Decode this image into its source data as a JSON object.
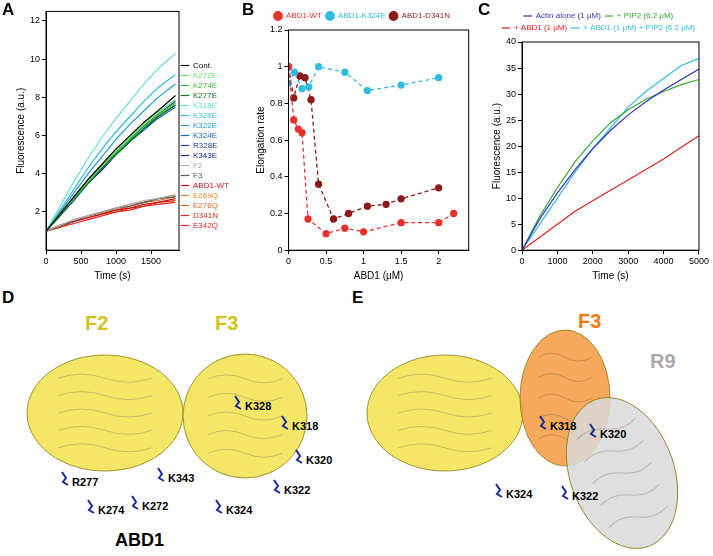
{
  "chart_data": [
    {
      "panel": "A",
      "type": "line",
      "xlabel": "Time (s)",
      "ylabel": "Fluorescence (a.u.)",
      "xlim": [
        0,
        1900
      ],
      "xticks": [
        0,
        500,
        1000,
        1500
      ],
      "ylim": [
        0,
        12.5
      ],
      "yticks": [
        2,
        4,
        6,
        8,
        10,
        12
      ],
      "grid": false,
      "legend": "right",
      "x": [
        0,
        200,
        400,
        600,
        800,
        1000,
        1200,
        1400,
        1600,
        1850
      ],
      "series": [
        {
          "name": "Cont.",
          "color": "#000000",
          "values": [
            1,
            1.9,
            2.8,
            3.7,
            4.5,
            5.3,
            6.0,
            6.7,
            7.3,
            8.1
          ]
        },
        {
          "name": "K272E",
          "color": "#66dd66",
          "values": [
            1,
            1.9,
            2.8,
            3.6,
            4.4,
            5.2,
            5.9,
            6.6,
            7.2,
            7.9
          ]
        },
        {
          "name": "K274E",
          "color": "#33bb33",
          "values": [
            1,
            1.9,
            2.7,
            3.6,
            4.4,
            5.1,
            5.8,
            6.5,
            7.1,
            7.7
          ]
        },
        {
          "name": "K277E",
          "color": "#117711",
          "values": [
            1,
            1.8,
            2.7,
            3.5,
            4.3,
            5.0,
            5.7,
            6.4,
            7.0,
            7.6
          ]
        },
        {
          "name": "K318E",
          "color": "#66dddd",
          "values": [
            1,
            2.3,
            3.6,
            4.8,
            5.9,
            6.9,
            7.8,
            8.7,
            9.5,
            10.3
          ]
        },
        {
          "name": "K320E",
          "color": "#33bbdd",
          "values": [
            1,
            2.1,
            3.2,
            4.3,
            5.3,
            6.2,
            7.0,
            7.8,
            8.5,
            9.2
          ]
        },
        {
          "name": "K322E",
          "color": "#2299cc",
          "values": [
            1,
            2.0,
            3.0,
            4.0,
            4.9,
            5.8,
            6.6,
            7.3,
            8.0,
            8.7
          ]
        },
        {
          "name": "K324E",
          "color": "#1166bb",
          "values": [
            1,
            1.8,
            2.6,
            3.5,
            4.3,
            5.0,
            5.7,
            6.3,
            6.9,
            7.5
          ]
        },
        {
          "name": "R328E",
          "color": "#2244aa",
          "values": [
            1,
            1.9,
            2.8,
            3.6,
            4.4,
            5.1,
            5.8,
            6.5,
            7.1,
            7.8
          ]
        },
        {
          "name": "K343E",
          "color": "#112288",
          "values": [
            1,
            1.8,
            2.7,
            3.5,
            4.2,
            5.0,
            5.7,
            6.3,
            7.0,
            7.6
          ]
        },
        {
          "name": "F2",
          "color": "#aaaaaa",
          "values": [
            1,
            1.3,
            1.6,
            1.8,
            2.0,
            2.2,
            2.4,
            2.6,
            2.7,
            2.9
          ]
        },
        {
          "name": "F3",
          "color": "#555555",
          "values": [
            1,
            1.3,
            1.5,
            1.8,
            2.0,
            2.2,
            2.3,
            2.5,
            2.7,
            2.8
          ]
        },
        {
          "name": "ABD1-WT",
          "color": "#cc1111",
          "values": [
            1,
            1.3,
            1.5,
            1.7,
            1.9,
            2.1,
            2.2,
            2.4,
            2.5,
            2.7
          ]
        },
        {
          "name": "E269Q",
          "color": "#ee8833",
          "values": [
            1,
            1.3,
            1.6,
            1.8,
            2.0,
            2.2,
            2.4,
            2.5,
            2.7,
            2.9
          ]
        },
        {
          "name": "E276Q",
          "color": "#dd6622",
          "values": [
            1,
            1.3,
            1.5,
            1.8,
            2.0,
            2.1,
            2.3,
            2.5,
            2.6,
            2.8
          ]
        },
        {
          "name": "D341N",
          "color": "#bb3311",
          "values": [
            1,
            1.2,
            1.5,
            1.7,
            1.9,
            2.0,
            2.2,
            2.3,
            2.5,
            2.6
          ]
        },
        {
          "name": "E342Q",
          "color": "#ee2222",
          "values": [
            1,
            1.2,
            1.4,
            1.6,
            1.8,
            2.0,
            2.1,
            2.3,
            2.4,
            2.5
          ]
        }
      ]
    },
    {
      "panel": "B",
      "type": "scatter",
      "xlabel": "ABD1 (μM)",
      "ylabel": "Elongation rate",
      "xlim": [
        0,
        2.4
      ],
      "xticks": [
        0,
        0.5,
        1,
        1.5,
        2
      ],
      "ylim": [
        0,
        1.2
      ],
      "yticks": [
        0,
        0.2,
        0.4,
        0.6,
        0.8,
        1,
        1.2
      ],
      "grid": false,
      "legend": "top",
      "series": [
        {
          "name": "ABD1-WT",
          "color": "#e8302a",
          "marker": "circle",
          "line_style": "dashed",
          "x": [
            0,
            0.07,
            0.13,
            0.18,
            0.26,
            0.5,
            0.75,
            1.0,
            1.5,
            2.0,
            2.2
          ],
          "values": [
            1.0,
            0.71,
            0.66,
            0.64,
            0.17,
            0.09,
            0.12,
            0.1,
            0.15,
            0.15,
            0.2
          ]
        },
        {
          "name": "ABD1-K324E",
          "color": "#33bbdd",
          "marker": "circle",
          "line_style": "dashed",
          "x": [
            0,
            0.08,
            0.18,
            0.27,
            0.4,
            0.75,
            1.05,
            1.5,
            2.0
          ],
          "values": [
            0.91,
            0.97,
            0.88,
            0.89,
            1.0,
            0.97,
            0.87,
            0.9,
            0.94
          ]
        },
        {
          "name": "ABD1-D341N",
          "color": "#8b1a1a",
          "marker": "circle",
          "line_style": "dashed",
          "x": [
            0,
            0.07,
            0.15,
            0.22,
            0.3,
            0.4,
            0.6,
            0.8,
            1.05,
            1.3,
            1.5,
            2.0
          ],
          "values": [
            1.0,
            0.83,
            0.95,
            0.94,
            0.82,
            0.36,
            0.17,
            0.2,
            0.24,
            0.25,
            0.28,
            0.34
          ]
        }
      ]
    },
    {
      "panel": "C",
      "type": "line",
      "xlabel": "Time (s)",
      "ylabel": "Fluorescence (a.u.)",
      "xlim": [
        0,
        5000
      ],
      "xticks": [
        0,
        1000,
        2000,
        3000,
        4000,
        5000
      ],
      "ylim": [
        0,
        40
      ],
      "yticks": [
        0,
        5,
        10,
        15,
        20,
        25,
        30,
        35,
        40
      ],
      "grid": false,
      "legend": "top",
      "x": [
        0,
        500,
        1000,
        1500,
        2000,
        2500,
        3000,
        3500,
        4000,
        4500,
        5000
      ],
      "series": [
        {
          "name": "Actin alone (1 μM)",
          "color": "#3333bb",
          "values": [
            0,
            6,
            11,
            15.5,
            19.5,
            23,
            26,
            28.5,
            30.8,
            32.8,
            34.8
          ]
        },
        {
          "name": "+ PIP2 (6.2 μM)",
          "color": "#33aa33",
          "values": [
            0,
            6.5,
            12,
            17,
            21,
            24.5,
            27,
            29,
            30.5,
            31.8,
            32.8
          ]
        },
        {
          "name": "+ ABD1 (1 μM)",
          "color": "#dd2222",
          "values": [
            0,
            2.5,
            5,
            7.5,
            9.5,
            11.5,
            13.5,
            15.5,
            17.5,
            19.8,
            22
          ]
        },
        {
          "name": "+ ABD1 (1 μM) + PIP2 (6.2 μM)",
          "color": "#33bbdd",
          "values": [
            0,
            5,
            10,
            15,
            19.5,
            23.5,
            27.5,
            30.5,
            33,
            35.5,
            36.8
          ]
        }
      ]
    }
  ],
  "diagrams": [
    {
      "panel": "D",
      "title": "ABD1",
      "domains": [
        {
          "label": "F2",
          "color": "#d4c21a"
        },
        {
          "label": "F3",
          "color": "#d4c21a"
        }
      ],
      "residues": [
        "K328",
        "K318",
        "K320",
        "K322",
        "K324",
        "K343",
        "R277",
        "K274",
        "K272"
      ]
    },
    {
      "panel": "E",
      "domains": [
        {
          "label": "F3",
          "color": "#f07a10"
        },
        {
          "label": "R9",
          "color": "#aaaaaa"
        }
      ],
      "residues": [
        "K318",
        "K320",
        "K324",
        "K322"
      ]
    }
  ]
}
